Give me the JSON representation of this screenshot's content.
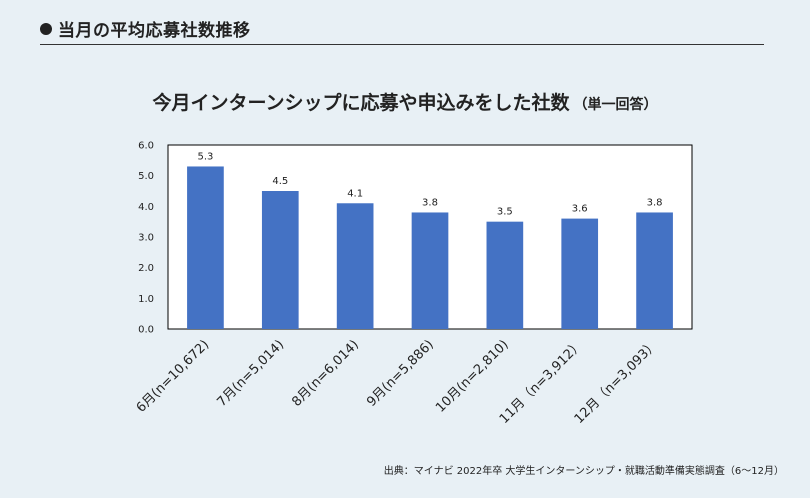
{
  "header": {
    "title": "当月の平均応募社数推移"
  },
  "chart_title": {
    "main": "今月インターンシップに応募や申込みをした社数",
    "sub": "（単一回答）"
  },
  "source": "出典：マイナビ 2022年卒 大学生インターンシップ・就職活動準備実態調査（6～12月）",
  "chart_data": {
    "type": "bar",
    "categories": [
      "6月(n=10,672)",
      "7月(n=5,014)",
      "8月(n=6,014)",
      "9月(n=5,886)",
      "10月(n=2,810)",
      "11月（n=3,912）",
      "12月（n=3,093）"
    ],
    "values": [
      5.3,
      4.5,
      4.1,
      3.8,
      3.5,
      3.6,
      3.8
    ],
    "value_labels": [
      "5.3",
      "4.5",
      "4.1",
      "3.8",
      "3.5",
      "3.6",
      "3.8"
    ],
    "yticks": [
      "0.0",
      "1.0",
      "2.0",
      "3.0",
      "4.0",
      "5.0",
      "6.0"
    ],
    "ylim": [
      0,
      6
    ],
    "bar_color": "#4472c4",
    "grid": false
  }
}
